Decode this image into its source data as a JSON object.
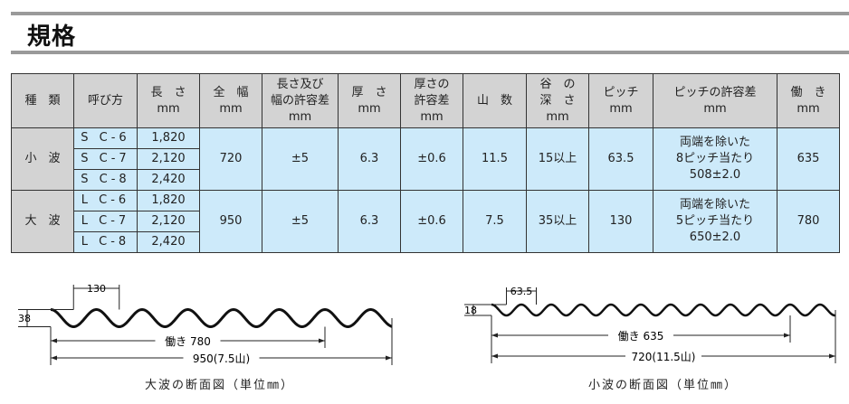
{
  "title": "規格",
  "table": {
    "headers": [
      [
        "種　類"
      ],
      [
        "呼び方"
      ],
      [
        "長　さ",
        "mm"
      ],
      [
        "全　幅",
        "mm"
      ],
      [
        "長さ及び",
        "幅の許容差",
        "mm"
      ],
      [
        "厚　さ",
        "mm"
      ],
      [
        "厚さの",
        "許容差",
        "mm"
      ],
      [
        "山　数"
      ],
      [
        "谷　の",
        "深　さ",
        "mm"
      ],
      [
        "ピッチ",
        "mm"
      ],
      [
        "ピッチの許容差",
        "mm"
      ],
      [
        "働　き",
        "mm"
      ]
    ],
    "rows": [
      {
        "kind": "小　波",
        "names": [
          "S C-6",
          "S C-7",
          "S C-8"
        ],
        "lengths": [
          "1,820",
          "2,120",
          "2,420"
        ],
        "width": "720",
        "size_tol": "±5",
        "thickness": "6.3",
        "thick_tol": "±0.6",
        "ridges": "11.5",
        "depth": "15以上",
        "pitch": "63.5",
        "pitch_tol": [
          "両端を除いた",
          "8ピッチ当たり",
          "508±2.0"
        ],
        "working": "635"
      },
      {
        "kind": "大　波",
        "names": [
          "L C-6",
          "L C-7",
          "L C-8"
        ],
        "lengths": [
          "1,820",
          "2,120",
          "2,420"
        ],
        "width": "950",
        "size_tol": "±5",
        "thickness": "6.3",
        "thick_tol": "±0.6",
        "ridges": "7.5",
        "depth": "35以上",
        "pitch": "130",
        "pitch_tol": [
          "両端を除いた",
          "5ピッチ当たり",
          "650±2.0"
        ],
        "working": "780"
      }
    ]
  },
  "diagrams": {
    "large": {
      "pitch_label": "130",
      "depth_label": "38",
      "working_label": "働き 780",
      "total_label": "950(7.5山)",
      "caption": "大波の断面図（単位㎜）"
    },
    "small": {
      "pitch_label": "63.5",
      "depth_label": "18",
      "working_label": "働き 635",
      "total_label": "720(11.5山)",
      "caption": "小波の断面図（単位㎜）"
    }
  }
}
